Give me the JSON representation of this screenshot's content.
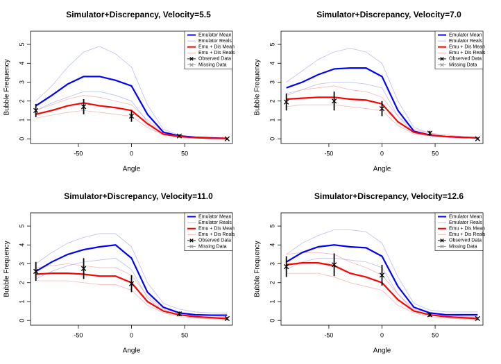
{
  "chart_data": [
    {
      "type": "line",
      "title": "Simulator+Discrepancy, Velocity=5.5",
      "xlabel": "Angle",
      "ylabel": "Bubble Frequency",
      "xlim": [
        -95,
        95
      ],
      "ylim": [
        -0.25,
        5.7
      ],
      "xticks": [
        -50,
        0,
        50
      ],
      "yticks": [
        0,
        1,
        2,
        3,
        4,
        5
      ],
      "x": [
        -90,
        -75,
        -60,
        -45,
        -30,
        -15,
        0,
        15,
        30,
        45,
        60,
        75,
        90
      ],
      "series": [
        {
          "name": "Emulator Mean",
          "color": "#0000ff",
          "values": [
            1.75,
            2.3,
            2.9,
            3.3,
            3.3,
            3.1,
            2.8,
            1.3,
            0.35,
            0.15,
            0.08,
            0.05,
            0.02
          ]
        },
        {
          "name": "Emulator Reals",
          "color": "#a8aef2",
          "values": [
            [
              2.0,
              2.8,
              3.8,
              4.6,
              4.9,
              4.5,
              3.8,
              1.8,
              0.5,
              0.2,
              0.1,
              0.06,
              0.03
            ],
            [
              1.5,
              1.9,
              2.2,
              2.5,
              2.5,
              2.3,
              2.0,
              0.9,
              0.25,
              0.1,
              0.05,
              0.03,
              0.01
            ]
          ]
        },
        {
          "name": "Emu + Dis Mean",
          "color": "#ff0000",
          "values": [
            1.3,
            1.5,
            1.75,
            1.9,
            1.75,
            1.65,
            1.5,
            0.8,
            0.25,
            0.12,
            0.06,
            0.03,
            0.02
          ]
        },
        {
          "name": "Emu + Dis Reals",
          "color": "#f4a6a6",
          "values": [
            [
              1.5,
              1.8,
              2.1,
              2.3,
              2.2,
              2.0,
              1.8,
              1.0,
              0.35,
              0.15,
              0.08,
              0.05,
              0.02
            ],
            [
              1.1,
              1.25,
              1.4,
              1.5,
              1.4,
              1.3,
              1.2,
              0.6,
              0.2,
              0.08,
              0.04,
              0.02,
              0.01
            ]
          ]
        },
        {
          "name": "Observed Data",
          "color": "#000000",
          "x": [
            -90,
            -45,
            0,
            45,
            90
          ],
          "values": [
            1.5,
            1.7,
            1.2,
            0.15,
            0.0
          ],
          "errors": [
            0.35,
            0.4,
            0.3,
            0.08,
            0.05
          ]
        },
        {
          "name": "Missing Data",
          "color": "#999999",
          "x": [],
          "values": []
        }
      ]
    },
    {
      "type": "line",
      "title": "Simulator+Discrepancy, Velocity=7.0",
      "xlabel": "Angle",
      "ylabel": "Bubble Frequency",
      "xlim": [
        -95,
        95
      ],
      "ylim": [
        -0.25,
        5.7
      ],
      "xticks": [
        -50,
        0,
        50
      ],
      "yticks": [
        0,
        1,
        2,
        3,
        4,
        5
      ],
      "x": [
        -90,
        -75,
        -60,
        -45,
        -30,
        -15,
        0,
        15,
        30,
        45,
        60,
        75,
        90
      ],
      "series": [
        {
          "name": "Emulator Mean",
          "color": "#0000ff",
          "values": [
            2.7,
            3.0,
            3.4,
            3.7,
            3.75,
            3.75,
            3.3,
            1.5,
            0.4,
            0.2,
            0.12,
            0.08,
            0.05
          ]
        },
        {
          "name": "Emulator Reals",
          "color": "#a8aef2",
          "values": [
            [
              3.0,
              3.6,
              4.2,
              4.6,
              4.8,
              4.6,
              4.0,
              2.0,
              0.6,
              0.3,
              0.2,
              0.12,
              0.08
            ],
            [
              2.3,
              2.6,
              2.9,
              3.0,
              3.0,
              2.9,
              2.7,
              1.2,
              0.3,
              0.15,
              0.08,
              0.05,
              0.03
            ]
          ]
        },
        {
          "name": "Emu + Dis Mean",
          "color": "#ff0000",
          "values": [
            2.1,
            2.15,
            2.2,
            2.2,
            2.1,
            2.05,
            1.85,
            0.9,
            0.35,
            0.2,
            0.12,
            0.08,
            0.05
          ]
        },
        {
          "name": "Emu + Dis Reals",
          "color": "#f4a6a6",
          "values": [
            [
              2.4,
              2.6,
              2.7,
              2.8,
              2.6,
              2.5,
              2.2,
              1.2,
              0.5,
              0.3,
              0.2,
              0.12,
              0.08
            ],
            [
              1.7,
              1.8,
              1.8,
              1.8,
              1.7,
              1.6,
              1.5,
              0.7,
              0.25,
              0.15,
              0.08,
              0.05,
              0.03
            ]
          ]
        },
        {
          "name": "Observed Data",
          "color": "#000000",
          "x": [
            -90,
            -45,
            0,
            45,
            90
          ],
          "values": [
            1.95,
            2.0,
            1.6,
            0.3,
            0.0
          ],
          "errors": [
            0.45,
            0.5,
            0.4,
            0.12,
            0.05
          ]
        },
        {
          "name": "Missing Data",
          "color": "#999999",
          "x": [],
          "values": []
        }
      ]
    },
    {
      "type": "line",
      "title": "Simulator+Discrepancy, Velocity=11.0",
      "xlabel": "Angle",
      "ylabel": "Bubble Frequency",
      "xlim": [
        -95,
        95
      ],
      "ylim": [
        -0.25,
        5.7
      ],
      "xticks": [
        -50,
        0,
        50
      ],
      "yticks": [
        0,
        1,
        2,
        3,
        4,
        5
      ],
      "x": [
        -90,
        -75,
        -60,
        -45,
        -30,
        -15,
        0,
        15,
        30,
        45,
        60,
        75,
        90
      ],
      "series": [
        {
          "name": "Emulator Mean",
          "color": "#0000ff",
          "values": [
            2.6,
            3.1,
            3.5,
            3.75,
            3.9,
            4.0,
            3.3,
            1.5,
            0.7,
            0.4,
            0.3,
            0.28,
            0.28
          ]
        },
        {
          "name": "Emulator Reals",
          "color": "#a8aef2",
          "values": [
            [
              3.0,
              3.6,
              4.1,
              4.4,
              4.6,
              4.6,
              3.9,
              2.0,
              0.9,
              0.6,
              0.45,
              0.4,
              0.4
            ],
            [
              2.2,
              2.6,
              2.9,
              3.1,
              3.2,
              3.3,
              2.7,
              1.2,
              0.5,
              0.3,
              0.2,
              0.2,
              0.2
            ]
          ]
        },
        {
          "name": "Emu + Dis Mean",
          "color": "#ff0000",
          "values": [
            2.45,
            2.5,
            2.5,
            2.45,
            2.35,
            2.35,
            2.0,
            1.0,
            0.5,
            0.3,
            0.2,
            0.15,
            0.1
          ]
        },
        {
          "name": "Emu + Dis Reals",
          "color": "#f4a6a6",
          "values": [
            [
              2.8,
              2.9,
              3.0,
              2.9,
              2.8,
              2.8,
              2.4,
              1.3,
              0.6,
              0.4,
              0.3,
              0.25,
              0.2
            ],
            [
              2.1,
              2.1,
              2.1,
              2.0,
              1.9,
              1.9,
              1.6,
              0.8,
              0.4,
              0.2,
              0.12,
              0.08,
              0.05
            ]
          ]
        },
        {
          "name": "Observed Data",
          "color": "#000000",
          "x": [
            -90,
            -45,
            0,
            45,
            90
          ],
          "values": [
            2.6,
            2.75,
            1.95,
            0.35,
            0.1
          ],
          "errors": [
            0.5,
            0.55,
            0.45,
            0.12,
            0.08
          ]
        },
        {
          "name": "Missing Data",
          "color": "#999999",
          "x": [],
          "values": []
        }
      ]
    },
    {
      "type": "line",
      "title": "Simulator+Discrepancy, Velocity=12.6",
      "xlabel": "Angle",
      "ylabel": "Bubble Frequency",
      "xlim": [
        -95,
        95
      ],
      "ylim": [
        -0.25,
        5.7
      ],
      "xticks": [
        -50,
        0,
        50
      ],
      "yticks": [
        0,
        1,
        2,
        3,
        4,
        5
      ],
      "x": [
        -90,
        -75,
        -60,
        -45,
        -30,
        -15,
        0,
        15,
        30,
        45,
        60,
        75,
        90
      ],
      "series": [
        {
          "name": "Emulator Mean",
          "color": "#0000ff",
          "values": [
            3.1,
            3.6,
            3.9,
            4.0,
            3.9,
            3.85,
            3.4,
            1.8,
            0.7,
            0.4,
            0.3,
            0.3,
            0.3
          ]
        },
        {
          "name": "Emulator Reals",
          "color": "#a8aef2",
          "values": [
            [
              3.5,
              4.1,
              4.5,
              4.8,
              4.8,
              4.7,
              4.1,
              2.3,
              0.9,
              0.55,
              0.45,
              0.45,
              0.45
            ],
            [
              2.7,
              3.1,
              3.3,
              3.3,
              3.2,
              3.1,
              2.8,
              1.4,
              0.5,
              0.3,
              0.2,
              0.2,
              0.2
            ]
          ]
        },
        {
          "name": "Emu + Dis Mean",
          "color": "#ff0000",
          "values": [
            2.95,
            3.05,
            3.05,
            2.9,
            2.5,
            2.3,
            2.0,
            1.1,
            0.5,
            0.3,
            0.2,
            0.15,
            0.1
          ]
        },
        {
          "name": "Emu + Dis Reals",
          "color": "#f4a6a6",
          "values": [
            [
              3.5,
              3.6,
              3.6,
              3.5,
              3.1,
              2.8,
              2.4,
              1.4,
              0.6,
              0.4,
              0.3,
              0.22,
              0.15
            ],
            [
              2.5,
              2.5,
              2.5,
              2.3,
              2.0,
              1.8,
              1.6,
              0.8,
              0.4,
              0.2,
              0.12,
              0.08,
              0.05
            ]
          ]
        },
        {
          "name": "Observed Data",
          "color": "#000000",
          "x": [
            -90,
            -45,
            0,
            45,
            90
          ],
          "values": [
            2.85,
            2.95,
            2.4,
            0.3,
            0.1
          ],
          "errors": [
            0.55,
            0.6,
            0.55,
            0.1,
            0.07
          ]
        },
        {
          "name": "Missing Data",
          "color": "#999999",
          "x": [],
          "values": []
        }
      ]
    }
  ]
}
